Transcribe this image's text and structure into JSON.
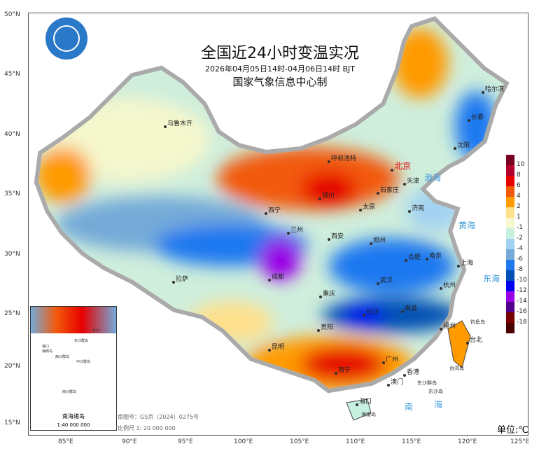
{
  "title": "全国近24小时变温实况",
  "subtitle": "2026年04月05日14时-04月06日14时  BJT",
  "producer": "国家气象信息中心制",
  "unit": "单位:℃",
  "review_number": "审图号：GS京（2024）0275号",
  "scale": "比例尺 1: 20 000 000",
  "inset": {
    "title": "南海诸岛",
    "scale": "1:40 000 000",
    "labels": [
      "海口",
      "海南岛",
      "台北",
      "东沙群岛",
      "西沙群岛",
      "中沙群岛",
      "南沙群岛"
    ]
  },
  "lat_ticks": [
    "50°N",
    "45°N",
    "40°N",
    "35°N",
    "30°N",
    "25°N",
    "20°N",
    "15°N"
  ],
  "lon_ticks": [
    "85°E",
    "90°E",
    "95°E",
    "100°E",
    "105°E",
    "110°E",
    "115°E",
    "120°E",
    "125°E"
  ],
  "legend": {
    "labels": [
      "10",
      "8",
      "6",
      "4",
      "2",
      "1",
      "-1",
      "-2",
      "-4",
      "-6",
      "-8",
      "-10",
      "-12",
      "-14",
      "-16",
      "-18"
    ],
    "colors": [
      "#7a0022",
      "#b4002c",
      "#e60000",
      "#f25a0a",
      "#ff9a00",
      "#ffe08c",
      "#f5f7cc",
      "#c8f0e0",
      "#a2d2f2",
      "#74aad8",
      "#1e78f0",
      "#0050b4",
      "#0000f0",
      "#9a00e6",
      "#50008c",
      "#7a0000",
      "#480000"
    ]
  },
  "cities": [
    "乌鲁木齐",
    "呼和浩特",
    "北京",
    "天津",
    "石家庄",
    "太原",
    "银川",
    "西宁",
    "兰州",
    "济南",
    "西安",
    "郑州",
    "合肥",
    "南京",
    "上海",
    "武汉",
    "杭州",
    "成都",
    "重庆",
    "拉萨",
    "长沙",
    "南昌",
    "福州",
    "贵阳",
    "昆明",
    "南宁",
    "广州",
    "香港",
    "澳门",
    "海口",
    "台北",
    "哈尔滨",
    "长春",
    "沈阳"
  ],
  "seas": [
    "渤海",
    "黄海",
    "东海",
    "南",
    "海"
  ],
  "islands": [
    "钓鱼岛",
    "台湾岛",
    "东沙群岛",
    "东沙岛",
    "海南岛"
  ]
}
